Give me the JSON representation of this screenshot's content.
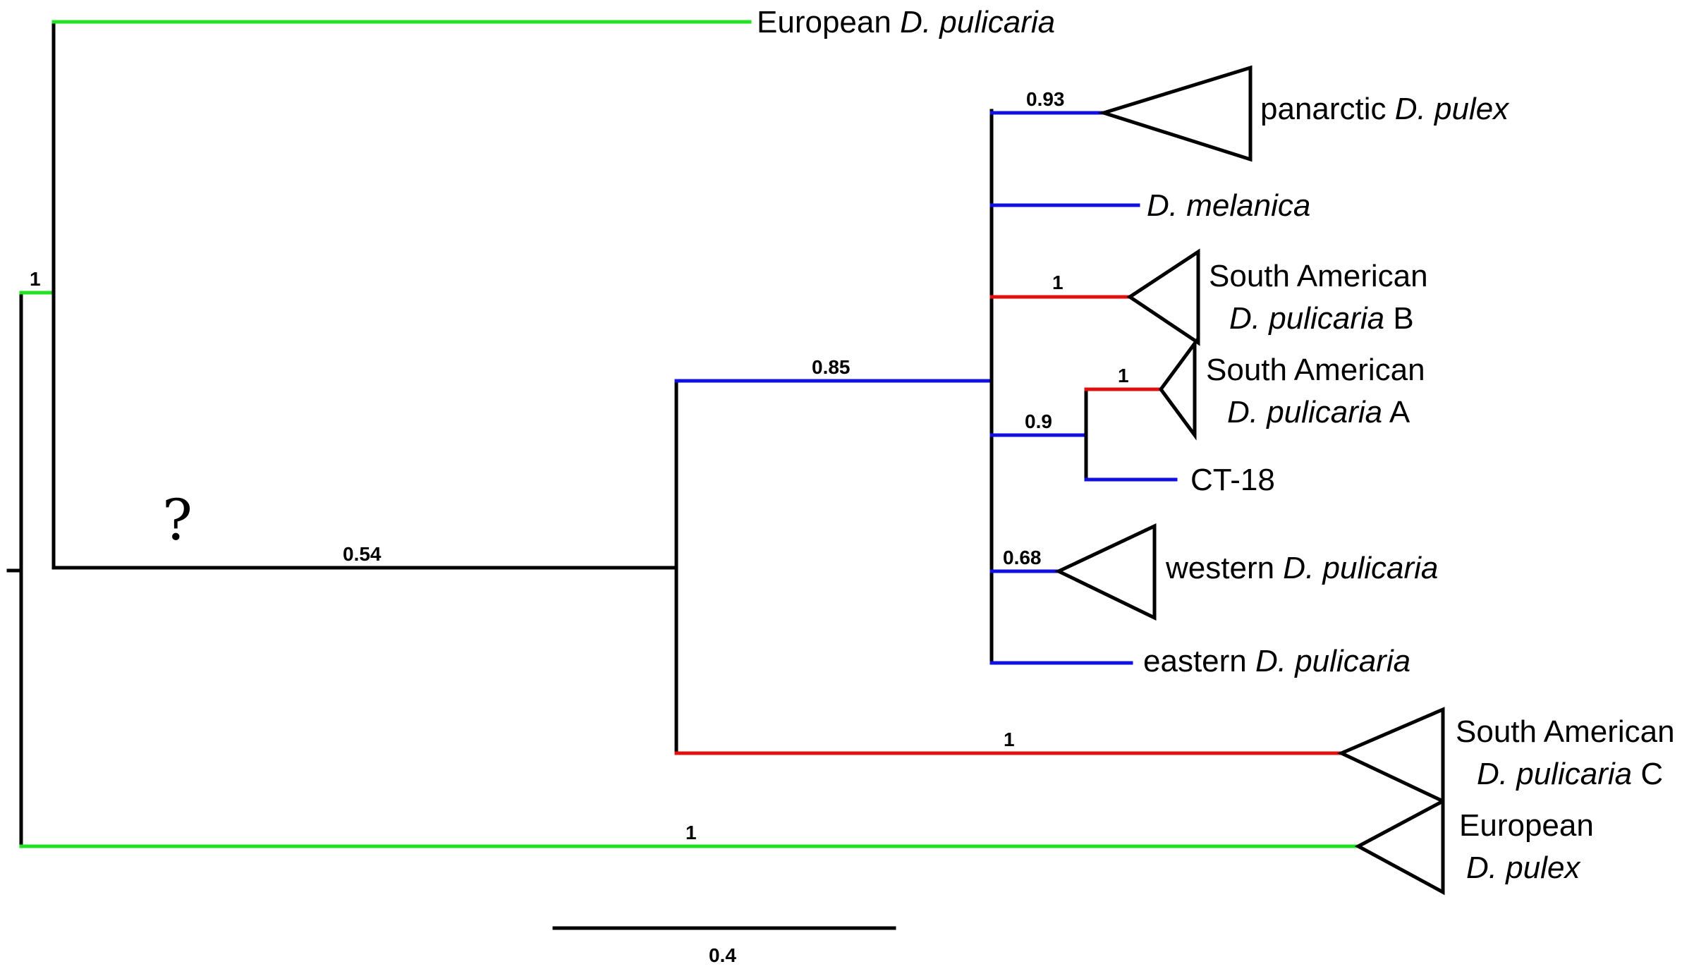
{
  "support": {
    "root_green": "1",
    "stem_054": "0.54",
    "branch_085": "0.85",
    "panarctic": "0.93",
    "sa_b": "1",
    "sa_a": "1",
    "ct_group": "0.9",
    "western": "0.68",
    "sa_c": "1",
    "euro_pulex": "1"
  },
  "question_mark": "?",
  "taxa": {
    "european_pulicaria": {
      "plain": "European ",
      "italic": "D. pulicaria"
    },
    "panarctic_pulex": {
      "plain": "panarctic ",
      "italic": "D. pulex"
    },
    "melanica": {
      "italic": "D. melanica"
    },
    "sa_b_line1": "South American",
    "sa_b_line2": {
      "italic": "D. pulicaria",
      "suffix": " B"
    },
    "sa_a_line1": "South American",
    "sa_a_line2": {
      "italic": "D. pulicaria",
      "suffix": " A"
    },
    "ct18": "CT-18",
    "western_pulicaria": {
      "plain": "western ",
      "italic": "D. pulicaria"
    },
    "eastern_pulicaria": {
      "plain": "eastern ",
      "italic": "D. pulicaria"
    },
    "sa_c_line1": "South American",
    "sa_c_line2": {
      "italic": "D. pulicaria",
      "suffix": " C"
    },
    "euro_pulex_line1": "European",
    "euro_pulex_line2": {
      "italic": "D. pulex"
    }
  },
  "scale_bar": {
    "label": "0.4"
  },
  "colors": {
    "black": "#000000",
    "green": "#22e022",
    "blue": "#1010e0",
    "red": "#e01010"
  }
}
